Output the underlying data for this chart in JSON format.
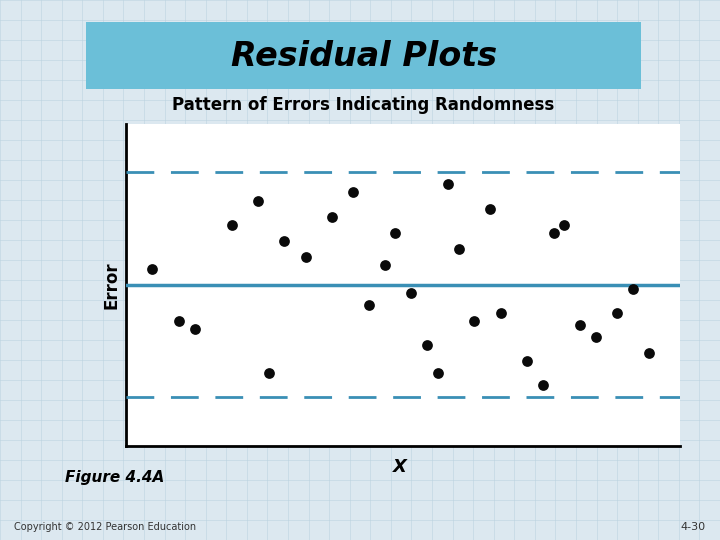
{
  "title": "Residual Plots",
  "subtitle": "Pattern of Errors Indicating Randomness",
  "xlabel": "X",
  "ylabel": "Error",
  "figure_label": "Figure 4.4A",
  "copyright": "Copyright © 2012 Pearson Education",
  "page_number": "4-30",
  "page_bg_color": "#dce8f0",
  "header_color": "#6bbfd8",
  "plot_bg_color": "#ffffff",
  "center_line_y": 0.0,
  "upper_dash_y": 1.4,
  "lower_dash_y": -1.4,
  "line_color": "#3a8fb5",
  "dash_color": "#3a8fb5",
  "scatter_x": [
    0.5,
    1.3,
    2.0,
    2.5,
    3.0,
    3.4,
    3.9,
    4.3,
    4.6,
    5.1,
    5.4,
    5.7,
    5.9,
    6.3,
    6.6,
    6.9,
    7.1,
    7.6,
    7.9,
    8.3,
    8.6,
    8.9,
    9.3,
    9.6,
    9.9,
    2.7,
    4.9,
    6.1,
    8.1,
    1.0
  ],
  "scatter_y": [
    0.2,
    -0.55,
    0.75,
    1.05,
    0.55,
    0.35,
    0.85,
    1.15,
    -0.25,
    0.65,
    -0.1,
    -0.75,
    -1.1,
    0.45,
    -0.45,
    0.95,
    -0.35,
    -0.95,
    -1.25,
    0.75,
    -0.5,
    -0.65,
    -0.35,
    -0.05,
    -0.85,
    -1.1,
    0.25,
    1.25,
    0.65,
    -0.45
  ],
  "xlim": [
    0,
    10.5
  ],
  "ylim": [
    -2.0,
    2.0
  ],
  "dot_color": "#0a0a0a",
  "dot_size": 60,
  "grid_color": "#b8d0de",
  "grid_alpha": 0.7
}
